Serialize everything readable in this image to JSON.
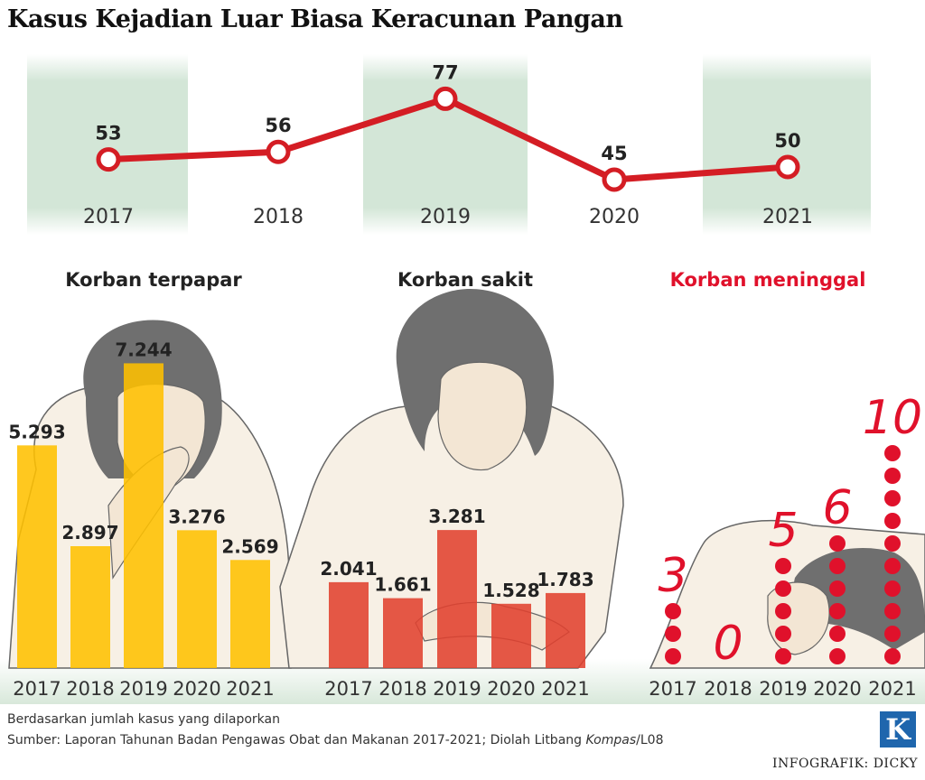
{
  "title": "Kasus Kejadian Luar Biasa Keracunan Pangan",
  "colors": {
    "line_red": "#d41d24",
    "bar_yellow": "#ffc000",
    "bar_red": "#e1412f",
    "dot_red": "#e0112b",
    "band_green": "#cfe3d3"
  },
  "chart_data": [
    {
      "type": "line",
      "categories": [
        "2017",
        "2018",
        "2019",
        "2020",
        "2021"
      ],
      "values": [
        53,
        56,
        77,
        45,
        50
      ],
      "data_labels": [
        "53",
        "56",
        "77",
        "45",
        "50"
      ]
    },
    {
      "type": "bar",
      "title": "Korban terpapar",
      "categories": [
        "2017",
        "2018",
        "2019",
        "2020",
        "2021"
      ],
      "values": [
        5293,
        2897,
        7244,
        3276,
        2569
      ],
      "data_labels": [
        "5.293",
        "2.897",
        "7.244",
        "3.276",
        "2.569"
      ]
    },
    {
      "type": "bar",
      "title": "Korban sakit",
      "categories": [
        "2017",
        "2018",
        "2019",
        "2020",
        "2021"
      ],
      "values": [
        2041,
        1661,
        3281,
        1528,
        1783
      ],
      "data_labels": [
        "2.041",
        "1.661",
        "3.281",
        "1.528",
        "1.783"
      ]
    },
    {
      "type": "bar",
      "title": "Korban meninggal",
      "categories": [
        "2017",
        "2018",
        "2019",
        "2020",
        "2021"
      ],
      "values": [
        3,
        0,
        5,
        6,
        10
      ],
      "data_labels": [
        "3",
        "0",
        "5",
        "6",
        "10"
      ]
    }
  ],
  "footer": {
    "note": "Berdasarkan jumlah kasus yang dilaporkan",
    "source_prefix": "Sumber: Laporan Tahunan Badan Pengawas Obat dan Makanan 2017-2021; Diolah Litbang ",
    "source_italic": "Kompas",
    "source_suffix": "/L08",
    "logo": "K",
    "credit": "INFOGRAFIK: DICKY"
  }
}
